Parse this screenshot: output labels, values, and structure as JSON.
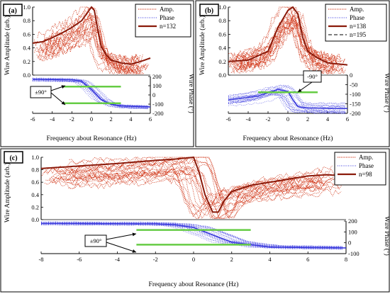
{
  "colors": {
    "amp": "#cc2200",
    "amp_bold": "#8b1a0a",
    "phase": "#3b3be0",
    "phase_bold": "#2a2ad8",
    "ref_line": "#66cc44",
    "frame": "#000000"
  },
  "chart_data": [
    {
      "type": "line",
      "panel_label": "(a)",
      "xlabel": "Frequency about Resonance (Hz)",
      "ylabel_left": "Wire Amplitude (arb.)",
      "ylabel_right": "Wire Phase (°)",
      "x_ticks": [
        "-6",
        "-4",
        "-2",
        "0",
        "2",
        "4",
        "6"
      ],
      "amp_ticks": [
        "0.0",
        "0.2",
        "0.4",
        "0.6",
        "0.8",
        "1.0"
      ],
      "phase_ticks": [
        "200",
        "100",
        "0",
        "-100",
        "-200"
      ],
      "xlim": [
        -6,
        6
      ],
      "amp_ylim": [
        0,
        1
      ],
      "phase_ylim": [
        -200,
        200
      ],
      "legend": {
        "items": [
          "Amp.",
          "Phase",
          "n=132"
        ],
        "position": "top-right"
      },
      "annotation": "±90°",
      "ref_lines_phase": [
        90,
        -90
      ],
      "ref_lines_x": [
        -3,
        3
      ],
      "highlighted_series": {
        "name": "n=132",
        "x": [
          -6,
          -5,
          -4,
          -3,
          -2,
          -1,
          -0.5,
          0,
          0.3,
          0.6,
          1,
          1.5,
          2,
          3,
          4,
          5,
          6
        ],
        "amp": [
          0.47,
          0.49,
          0.55,
          0.62,
          0.7,
          0.8,
          0.9,
          1.0,
          0.95,
          0.7,
          0.42,
          0.3,
          0.22,
          0.18,
          0.16,
          0.2,
          0.25
        ]
      },
      "phase_profile": {
        "x": [
          -6,
          -2,
          -1,
          0,
          1,
          2,
          3,
          6
        ],
        "phase": [
          170,
          165,
          150,
          60,
          -50,
          -100,
          -120,
          -130
        ]
      }
    },
    {
      "type": "line",
      "panel_label": "(b)",
      "xlabel": "Frequency about Resonance (Hz)",
      "ylabel_left": "Wire Amplitude (arb.)",
      "ylabel_right": "Wire Phase (°)",
      "x_ticks": [
        "-6",
        "-4",
        "-2",
        "0",
        "2",
        "4",
        "6"
      ],
      "amp_ticks": [
        "0.0",
        "0.2",
        "0.4",
        "0.6",
        "0.8",
        "1.0"
      ],
      "phase_ticks": [
        "0",
        "-50",
        "-100",
        "-150",
        "-200"
      ],
      "xlim": [
        -6,
        6
      ],
      "amp_ylim": [
        0,
        1
      ],
      "phase_ylim": [
        -200,
        0
      ],
      "legend": {
        "items": [
          "Amp.",
          "Phase",
          "n=138",
          "n=195"
        ],
        "position": "top-right"
      },
      "annotation": "-90°",
      "ref_lines_phase": [
        -90
      ],
      "ref_lines_x": [
        -3,
        3
      ],
      "highlighted_series": {
        "name": "n=138",
        "x": [
          -6,
          -4,
          -2,
          -1,
          0,
          0.5,
          1,
          1.5,
          2,
          3,
          4,
          6
        ],
        "amp": [
          0.2,
          0.22,
          0.35,
          0.7,
          0.95,
          1.0,
          0.9,
          0.55,
          0.35,
          0.25,
          0.18,
          0.15
        ]
      },
      "phase_profile": {
        "x": [
          -6,
          -3,
          -1,
          0,
          0.5,
          1,
          2,
          6
        ],
        "phase": [
          -130,
          -110,
          -75,
          -85,
          -130,
          -165,
          -172,
          -175
        ]
      }
    },
    {
      "type": "line",
      "panel_label": "(c)",
      "xlabel": "Frequency about Resonance (Hz)",
      "ylabel_left": "Wire Amplitude (arb.)",
      "ylabel_right": "Wire Phase (°)",
      "x_ticks": [
        "-8",
        "-6",
        "-4",
        "-2",
        "0",
        "2",
        "4",
        "6",
        "8"
      ],
      "amp_ticks": [
        "0.0",
        "0.2",
        "0.4",
        "0.6",
        "0.8",
        "1.0"
      ],
      "phase_ticks": [
        "200",
        "100",
        "0",
        "-100"
      ],
      "xlim": [
        -8,
        8
      ],
      "amp_ylim": [
        0,
        1
      ],
      "phase_ylim": [
        -200,
        200
      ],
      "legend": {
        "items": [
          "Amp.",
          "Phase",
          "n=98"
        ],
        "position": "top-right"
      },
      "annotation": "±90°",
      "ref_lines_phase": [
        90,
        -90
      ],
      "ref_lines_x": [
        -3,
        3
      ],
      "highlighted_series": {
        "name": "n=98",
        "x": [
          -8,
          -6,
          -4,
          -2,
          -1,
          0,
          0.3,
          0.6,
          1,
          1.3,
          1.6,
          2,
          3,
          4,
          5,
          6,
          7,
          8
        ],
        "amp": [
          0.82,
          0.86,
          0.9,
          0.95,
          0.97,
          1.0,
          0.75,
          0.4,
          0.12,
          0.12,
          0.3,
          0.45,
          0.55,
          0.6,
          0.65,
          0.7,
          0.72,
          0.7
        ]
      },
      "phase_profile": {
        "x": [
          -8,
          -2,
          -1,
          0,
          1,
          2,
          4,
          8
        ],
        "phase": [
          170,
          165,
          155,
          120,
          30,
          -60,
          -120,
          -130
        ]
      }
    }
  ]
}
